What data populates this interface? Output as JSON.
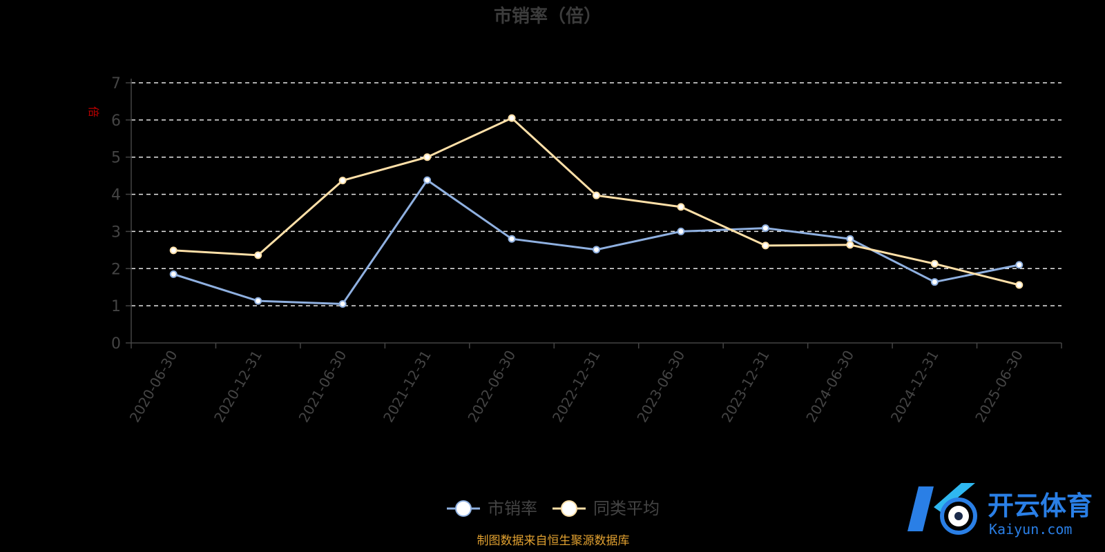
{
  "chart_data": {
    "type": "line",
    "title": "市销率（倍）",
    "ylabel": "倍",
    "ylim": [
      0,
      7
    ],
    "yticks": [
      0,
      1,
      2,
      3,
      4,
      5,
      6,
      7
    ],
    "grid": true,
    "categories": [
      "2020-06-30",
      "2020-12-31",
      "2021-06-30",
      "2021-12-31",
      "2022-06-30",
      "2022-12-31",
      "2023-06-30",
      "2023-12-31",
      "2024-06-30",
      "2024-12-31",
      "2025-06-30"
    ],
    "series": [
      {
        "name": "市销率",
        "color": "#8fb0e0",
        "values": [
          1.85,
          1.13,
          1.05,
          4.38,
          2.8,
          2.51,
          3.0,
          3.09,
          2.8,
          1.64,
          2.1
        ]
      },
      {
        "name": "同类平均",
        "color": "#ffe0a8",
        "values": [
          2.49,
          2.36,
          4.37,
          5.0,
          6.05,
          3.97,
          3.66,
          2.62,
          2.64,
          2.13,
          1.56
        ]
      }
    ],
    "legend_position": "bottom-center"
  },
  "source_note": "制图数据来自恒生聚源数据库",
  "watermark": {
    "cn": "开云体育",
    "en": "Kaiyun.com"
  }
}
